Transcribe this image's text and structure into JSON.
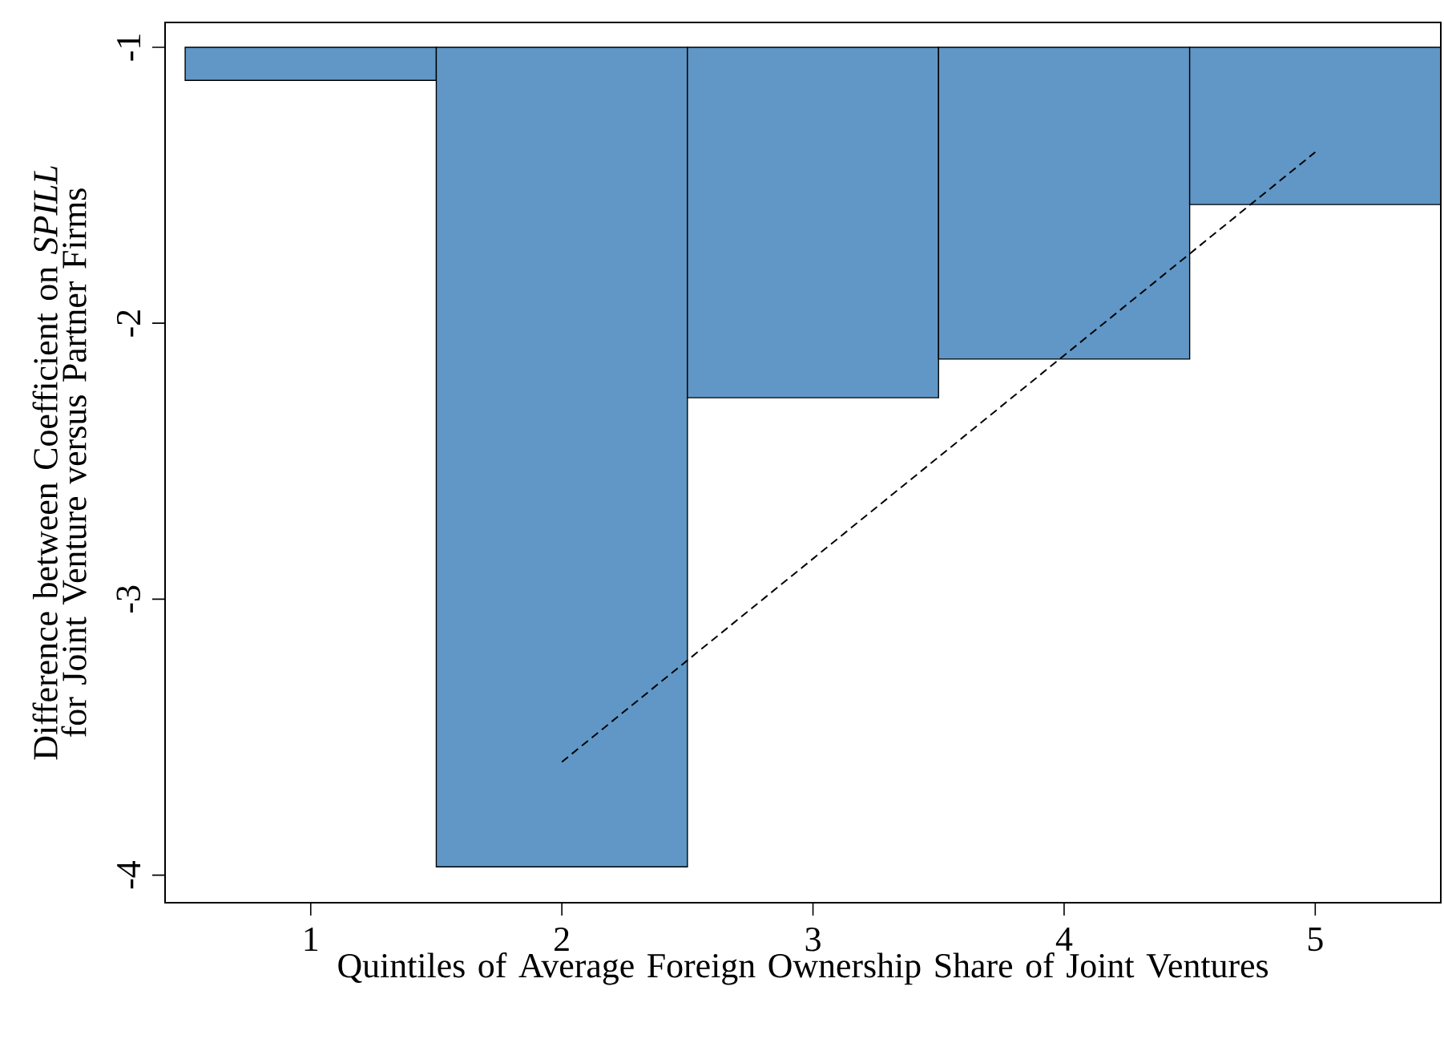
{
  "chart_data": {
    "type": "bar",
    "xlabel": "Quintiles of Average Foreign Ownership Share of Joint Ventures",
    "ylabel": "Difference between Coefficient on *SPILL* for Joint Venture versus Partner Firms",
    "x": [
      1,
      2,
      3,
      4,
      5
    ],
    "xlim": [
      0.42,
      5.5
    ],
    "ylim": [
      -4.1,
      -0.91
    ],
    "xticks": [
      1,
      2,
      3,
      4,
      5
    ],
    "yticks": [
      -4,
      -3,
      -2,
      -1
    ],
    "series": [
      {
        "color": "#6097c6",
        "base": [
          -1,
          -1,
          -1,
          -1,
          -1
        ],
        "values": [
          -0.12,
          -2.97,
          -1.27,
          -1.13,
          -0.57
        ]
      },
      {
        "type": "line",
        "color": "#000000",
        "line_style": "dashed",
        "marker": "none",
        "x": [
          2,
          5
        ],
        "values": [
          -3.59,
          -1.38
        ]
      }
    ],
    "grid": false
  }
}
